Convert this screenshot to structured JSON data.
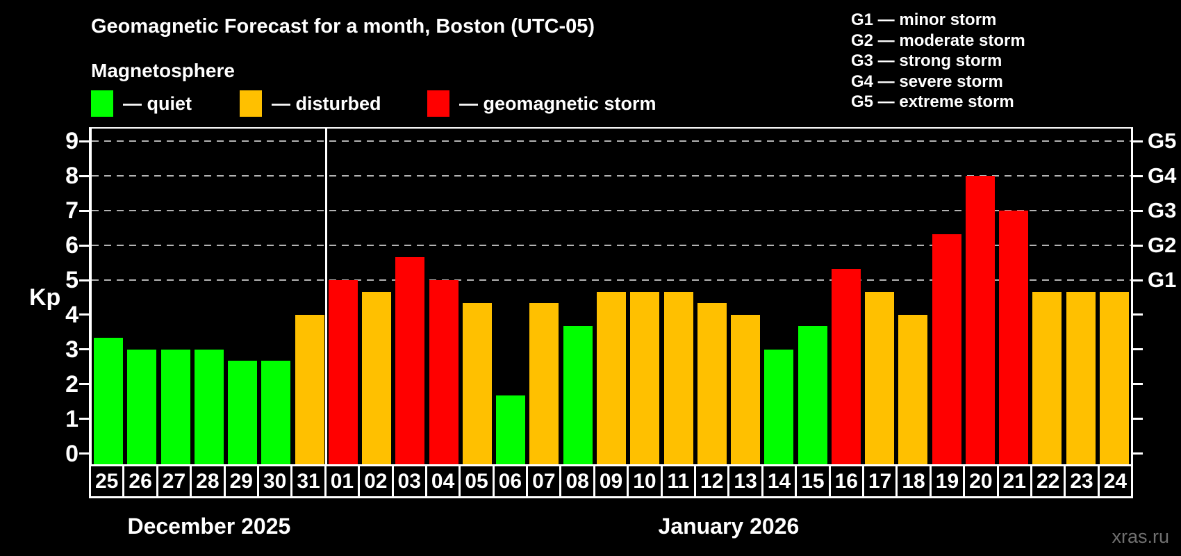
{
  "title": "Geomagnetic Forecast for a month, Boston (UTC-05)",
  "subtitle": "Magnetosphere",
  "status_legend": [
    {
      "key": "quiet",
      "label": "— quiet",
      "color": "#00ff00"
    },
    {
      "key": "disturbed",
      "label": "— disturbed",
      "color": "#ffc000"
    },
    {
      "key": "storm",
      "label": "— geomagnetic storm",
      "color": "#ff0000"
    }
  ],
  "g_legend": [
    "G1 — minor storm",
    "G2 — moderate storm",
    "G3 — strong storm",
    "G4 — severe storm",
    "G5 — extreme storm"
  ],
  "watermark": "xras.ru",
  "colors": {
    "background": "#000000",
    "text": "#ffffff",
    "axis": "#ffffff",
    "grid": "#b3b3b3",
    "watermark": "#707070",
    "quiet": "#00ff00",
    "disturbed": "#ffc000",
    "storm": "#ff0000"
  },
  "chart_data": {
    "type": "bar",
    "title": "Geomagnetic Forecast for a month, Boston (UTC-05)",
    "ylabel": "Kp",
    "ylim": [
      0,
      9
    ],
    "y_ticks": [
      0,
      1,
      2,
      3,
      4,
      5,
      6,
      7,
      8,
      9
    ],
    "gridlines_at": [
      5,
      6,
      7,
      8,
      9
    ],
    "grid": "dashed horizontal lines at Kp 5-9",
    "legend_position": "top-left and top-right",
    "right_axis_labels": [
      {
        "label": "G1",
        "kp": 5
      },
      {
        "label": "G2",
        "kp": 6
      },
      {
        "label": "G3",
        "kp": 7
      },
      {
        "label": "G4",
        "kp": 8
      },
      {
        "label": "G5",
        "kp": 9
      }
    ],
    "months": [
      {
        "name": "December 2025",
        "days": [
          "25",
          "26",
          "27",
          "28",
          "29",
          "30",
          "31"
        ]
      },
      {
        "name": "January 2026",
        "days": [
          "01",
          "02",
          "03",
          "04",
          "05",
          "06",
          "07",
          "08",
          "09",
          "10",
          "11",
          "12",
          "13",
          "14",
          "15",
          "16",
          "17",
          "18",
          "19",
          "20",
          "21",
          "22",
          "23",
          "24"
        ]
      }
    ],
    "bars": [
      {
        "day": "25",
        "month": "December 2025",
        "kp": 3.33,
        "status": "quiet"
      },
      {
        "day": "26",
        "month": "December 2025",
        "kp": 3.0,
        "status": "quiet"
      },
      {
        "day": "27",
        "month": "December 2025",
        "kp": 3.0,
        "status": "quiet"
      },
      {
        "day": "28",
        "month": "December 2025",
        "kp": 3.0,
        "status": "quiet"
      },
      {
        "day": "29",
        "month": "December 2025",
        "kp": 2.67,
        "status": "quiet"
      },
      {
        "day": "30",
        "month": "December 2025",
        "kp": 2.67,
        "status": "quiet"
      },
      {
        "day": "31",
        "month": "December 2025",
        "kp": 4.0,
        "status": "disturbed"
      },
      {
        "day": "01",
        "month": "January 2026",
        "kp": 5.0,
        "status": "storm"
      },
      {
        "day": "02",
        "month": "January 2026",
        "kp": 4.67,
        "status": "disturbed"
      },
      {
        "day": "03",
        "month": "January 2026",
        "kp": 5.67,
        "status": "storm"
      },
      {
        "day": "04",
        "month": "January 2026",
        "kp": 5.0,
        "status": "storm"
      },
      {
        "day": "05",
        "month": "January 2026",
        "kp": 4.33,
        "status": "disturbed"
      },
      {
        "day": "06",
        "month": "January 2026",
        "kp": 1.67,
        "status": "quiet"
      },
      {
        "day": "07",
        "month": "January 2026",
        "kp": 4.33,
        "status": "disturbed"
      },
      {
        "day": "08",
        "month": "January 2026",
        "kp": 3.67,
        "status": "quiet"
      },
      {
        "day": "09",
        "month": "January 2026",
        "kp": 4.67,
        "status": "disturbed"
      },
      {
        "day": "10",
        "month": "January 2026",
        "kp": 4.67,
        "status": "disturbed"
      },
      {
        "day": "11",
        "month": "January 2026",
        "kp": 4.67,
        "status": "disturbed"
      },
      {
        "day": "12",
        "month": "January 2026",
        "kp": 4.33,
        "status": "disturbed"
      },
      {
        "day": "13",
        "month": "January 2026",
        "kp": 4.0,
        "status": "disturbed"
      },
      {
        "day": "14",
        "month": "January 2026",
        "kp": 3.0,
        "status": "quiet"
      },
      {
        "day": "15",
        "month": "January 2026",
        "kp": 3.67,
        "status": "quiet"
      },
      {
        "day": "16",
        "month": "January 2026",
        "kp": 5.33,
        "status": "storm"
      },
      {
        "day": "17",
        "month": "January 2026",
        "kp": 4.67,
        "status": "disturbed"
      },
      {
        "day": "18",
        "month": "January 2026",
        "kp": 4.0,
        "status": "disturbed"
      },
      {
        "day": "19",
        "month": "January 2026",
        "kp": 6.33,
        "status": "storm"
      },
      {
        "day": "20",
        "month": "January 2026",
        "kp": 8.0,
        "status": "storm"
      },
      {
        "day": "21",
        "month": "January 2026",
        "kp": 7.0,
        "status": "storm"
      },
      {
        "day": "22",
        "month": "January 2026",
        "kp": 4.67,
        "status": "disturbed"
      },
      {
        "day": "23",
        "month": "January 2026",
        "kp": 4.67,
        "status": "disturbed"
      },
      {
        "day": "24",
        "month": "January 2026",
        "kp": 4.67,
        "status": "disturbed"
      }
    ]
  }
}
